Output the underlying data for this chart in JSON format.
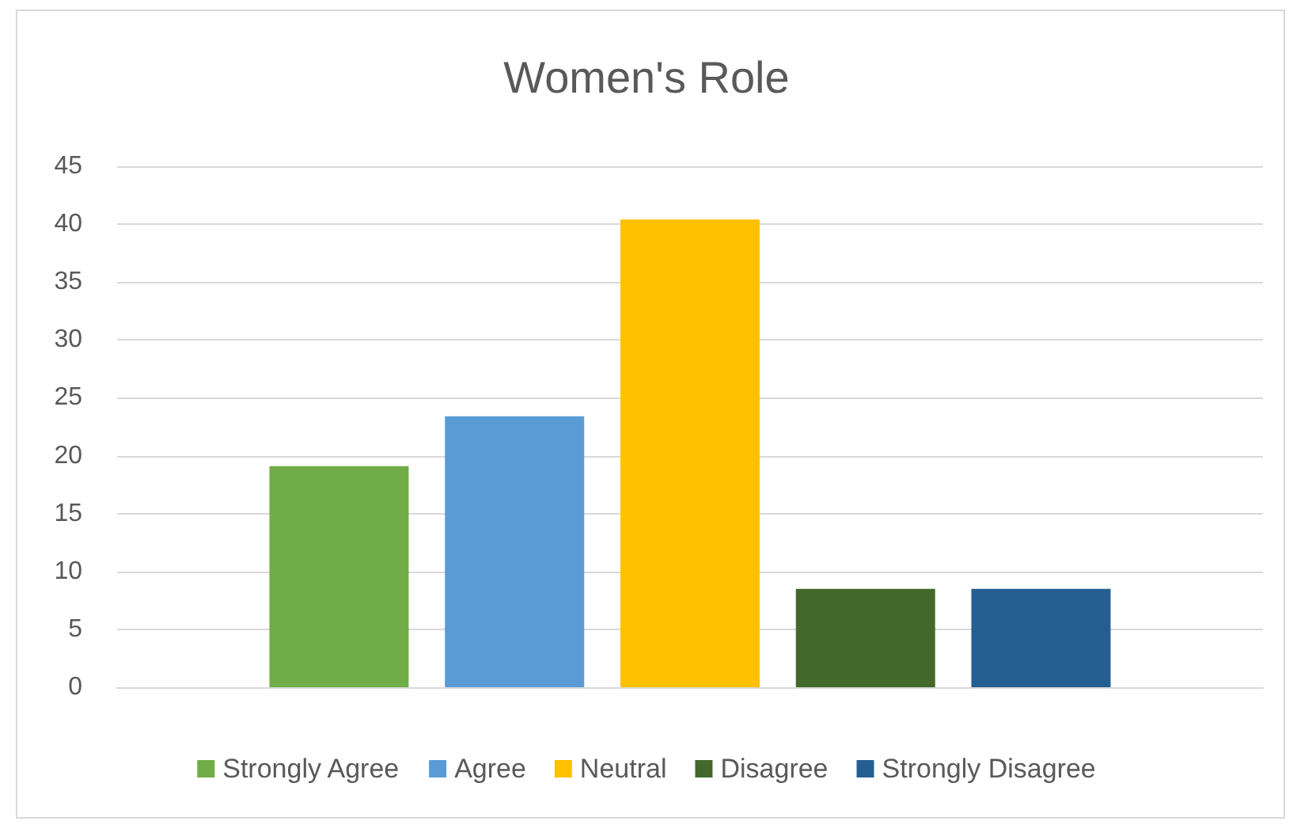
{
  "chart_data": {
    "type": "bar",
    "title": "Women's Role",
    "categories": [
      null
    ],
    "series": [
      {
        "name": "Strongly Agree",
        "color": "#70ad47",
        "values": [
          19.1
        ]
      },
      {
        "name": "Agree",
        "color": "#5b9bd5",
        "values": [
          23.4
        ]
      },
      {
        "name": "Neutral",
        "color": "#ffc000",
        "values": [
          40.4
        ]
      },
      {
        "name": "Disagree",
        "color": "#43682b",
        "values": [
          8.5
        ]
      },
      {
        "name": "Strongly Disagree",
        "color": "#255e91",
        "values": [
          8.5
        ]
      }
    ],
    "ylim": [
      0,
      45
    ],
    "yticks": [
      0,
      5,
      10,
      15,
      20,
      25,
      30,
      35,
      40,
      45
    ],
    "grid": "y",
    "legend": "bottom",
    "tick_labels": "y"
  }
}
